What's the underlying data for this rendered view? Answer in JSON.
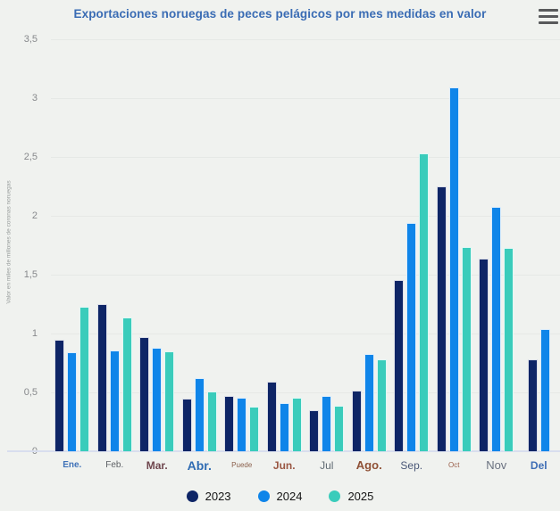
{
  "header": {
    "title": "Exportaciones noruegas de peces pelágicos por mes medidas en valor",
    "menu_icon": "hamburger-icon"
  },
  "colors": {
    "background": "#f0f2ef",
    "title_text": "#3a6cb4",
    "axis_line": "#d8deee",
    "gridline": "#e6e9e6",
    "ytick_text": "#87898c",
    "series_2023": "#0e2566",
    "series_2024": "#0f85e9",
    "series_2025": "#3accbb"
  },
  "chart_data": {
    "type": "bar",
    "title": "Exportaciones noruegas de peces pelágicos por mes medidas en valor",
    "xlabel": "",
    "ylabel": "Valor en miles de millones de coronas noruegas",
    "ylim": [
      0,
      3.5
    ],
    "grid": true,
    "legend_position": "bottom",
    "yticks": [
      {
        "value": 0,
        "label": "0"
      },
      {
        "value": 0.5,
        "label": "0,5"
      },
      {
        "value": 1,
        "label": "1"
      },
      {
        "value": 1.5,
        "label": "1,5"
      },
      {
        "value": 2,
        "label": "2"
      },
      {
        "value": 2.5,
        "label": "2,5"
      },
      {
        "value": 3,
        "label": "3"
      },
      {
        "value": 3.5,
        "label": "3,5"
      }
    ],
    "categories": [
      "Ene.",
      "Feb.",
      "Mar.",
      "Abr.",
      "Puede",
      "Jun.",
      "Jul",
      "Ago.",
      "Sep.",
      "Oct",
      "Nov",
      "Del"
    ],
    "category_styles": [
      {
        "color": "#3f72b8",
        "size": 10,
        "weight": 600
      },
      {
        "color": "#5d6064",
        "size": 10,
        "weight": 400
      },
      {
        "color": "#6f474e",
        "size": 12,
        "weight": 600
      },
      {
        "color": "#2f6cb3",
        "size": 14,
        "weight": 700
      },
      {
        "color": "#8a5f4b",
        "size": 8,
        "weight": 400
      },
      {
        "color": "#9a5743",
        "size": 12,
        "weight": 600
      },
      {
        "color": "#5f6a72",
        "size": 12,
        "weight": 400
      },
      {
        "color": "#8f5136",
        "size": 13,
        "weight": 600
      },
      {
        "color": "#4a5878",
        "size": 12,
        "weight": 500
      },
      {
        "color": "#9a5f4a",
        "size": 8,
        "weight": 500
      },
      {
        "color": "#6a7280",
        "size": 13,
        "weight": 400
      },
      {
        "color": "#3e6db5",
        "size": 12,
        "weight": 600
      }
    ],
    "series": [
      {
        "name": "2023",
        "color": "#0e2566",
        "values": [
          0.94,
          1.24,
          0.96,
          0.44,
          0.46,
          0.58,
          0.34,
          0.51,
          1.45,
          2.24,
          1.63,
          0.77
        ]
      },
      {
        "name": "2024",
        "color": "#0f85e9",
        "values": [
          0.83,
          0.85,
          0.87,
          0.61,
          0.45,
          0.4,
          0.46,
          0.82,
          1.93,
          3.08,
          2.07,
          1.03
        ]
      },
      {
        "name": "2025",
        "color": "#3accbb",
        "values": [
          1.22,
          1.13,
          0.84,
          0.5,
          0.37,
          0.45,
          0.38,
          0.77,
          2.52,
          1.73,
          1.72,
          null
        ]
      }
    ]
  }
}
